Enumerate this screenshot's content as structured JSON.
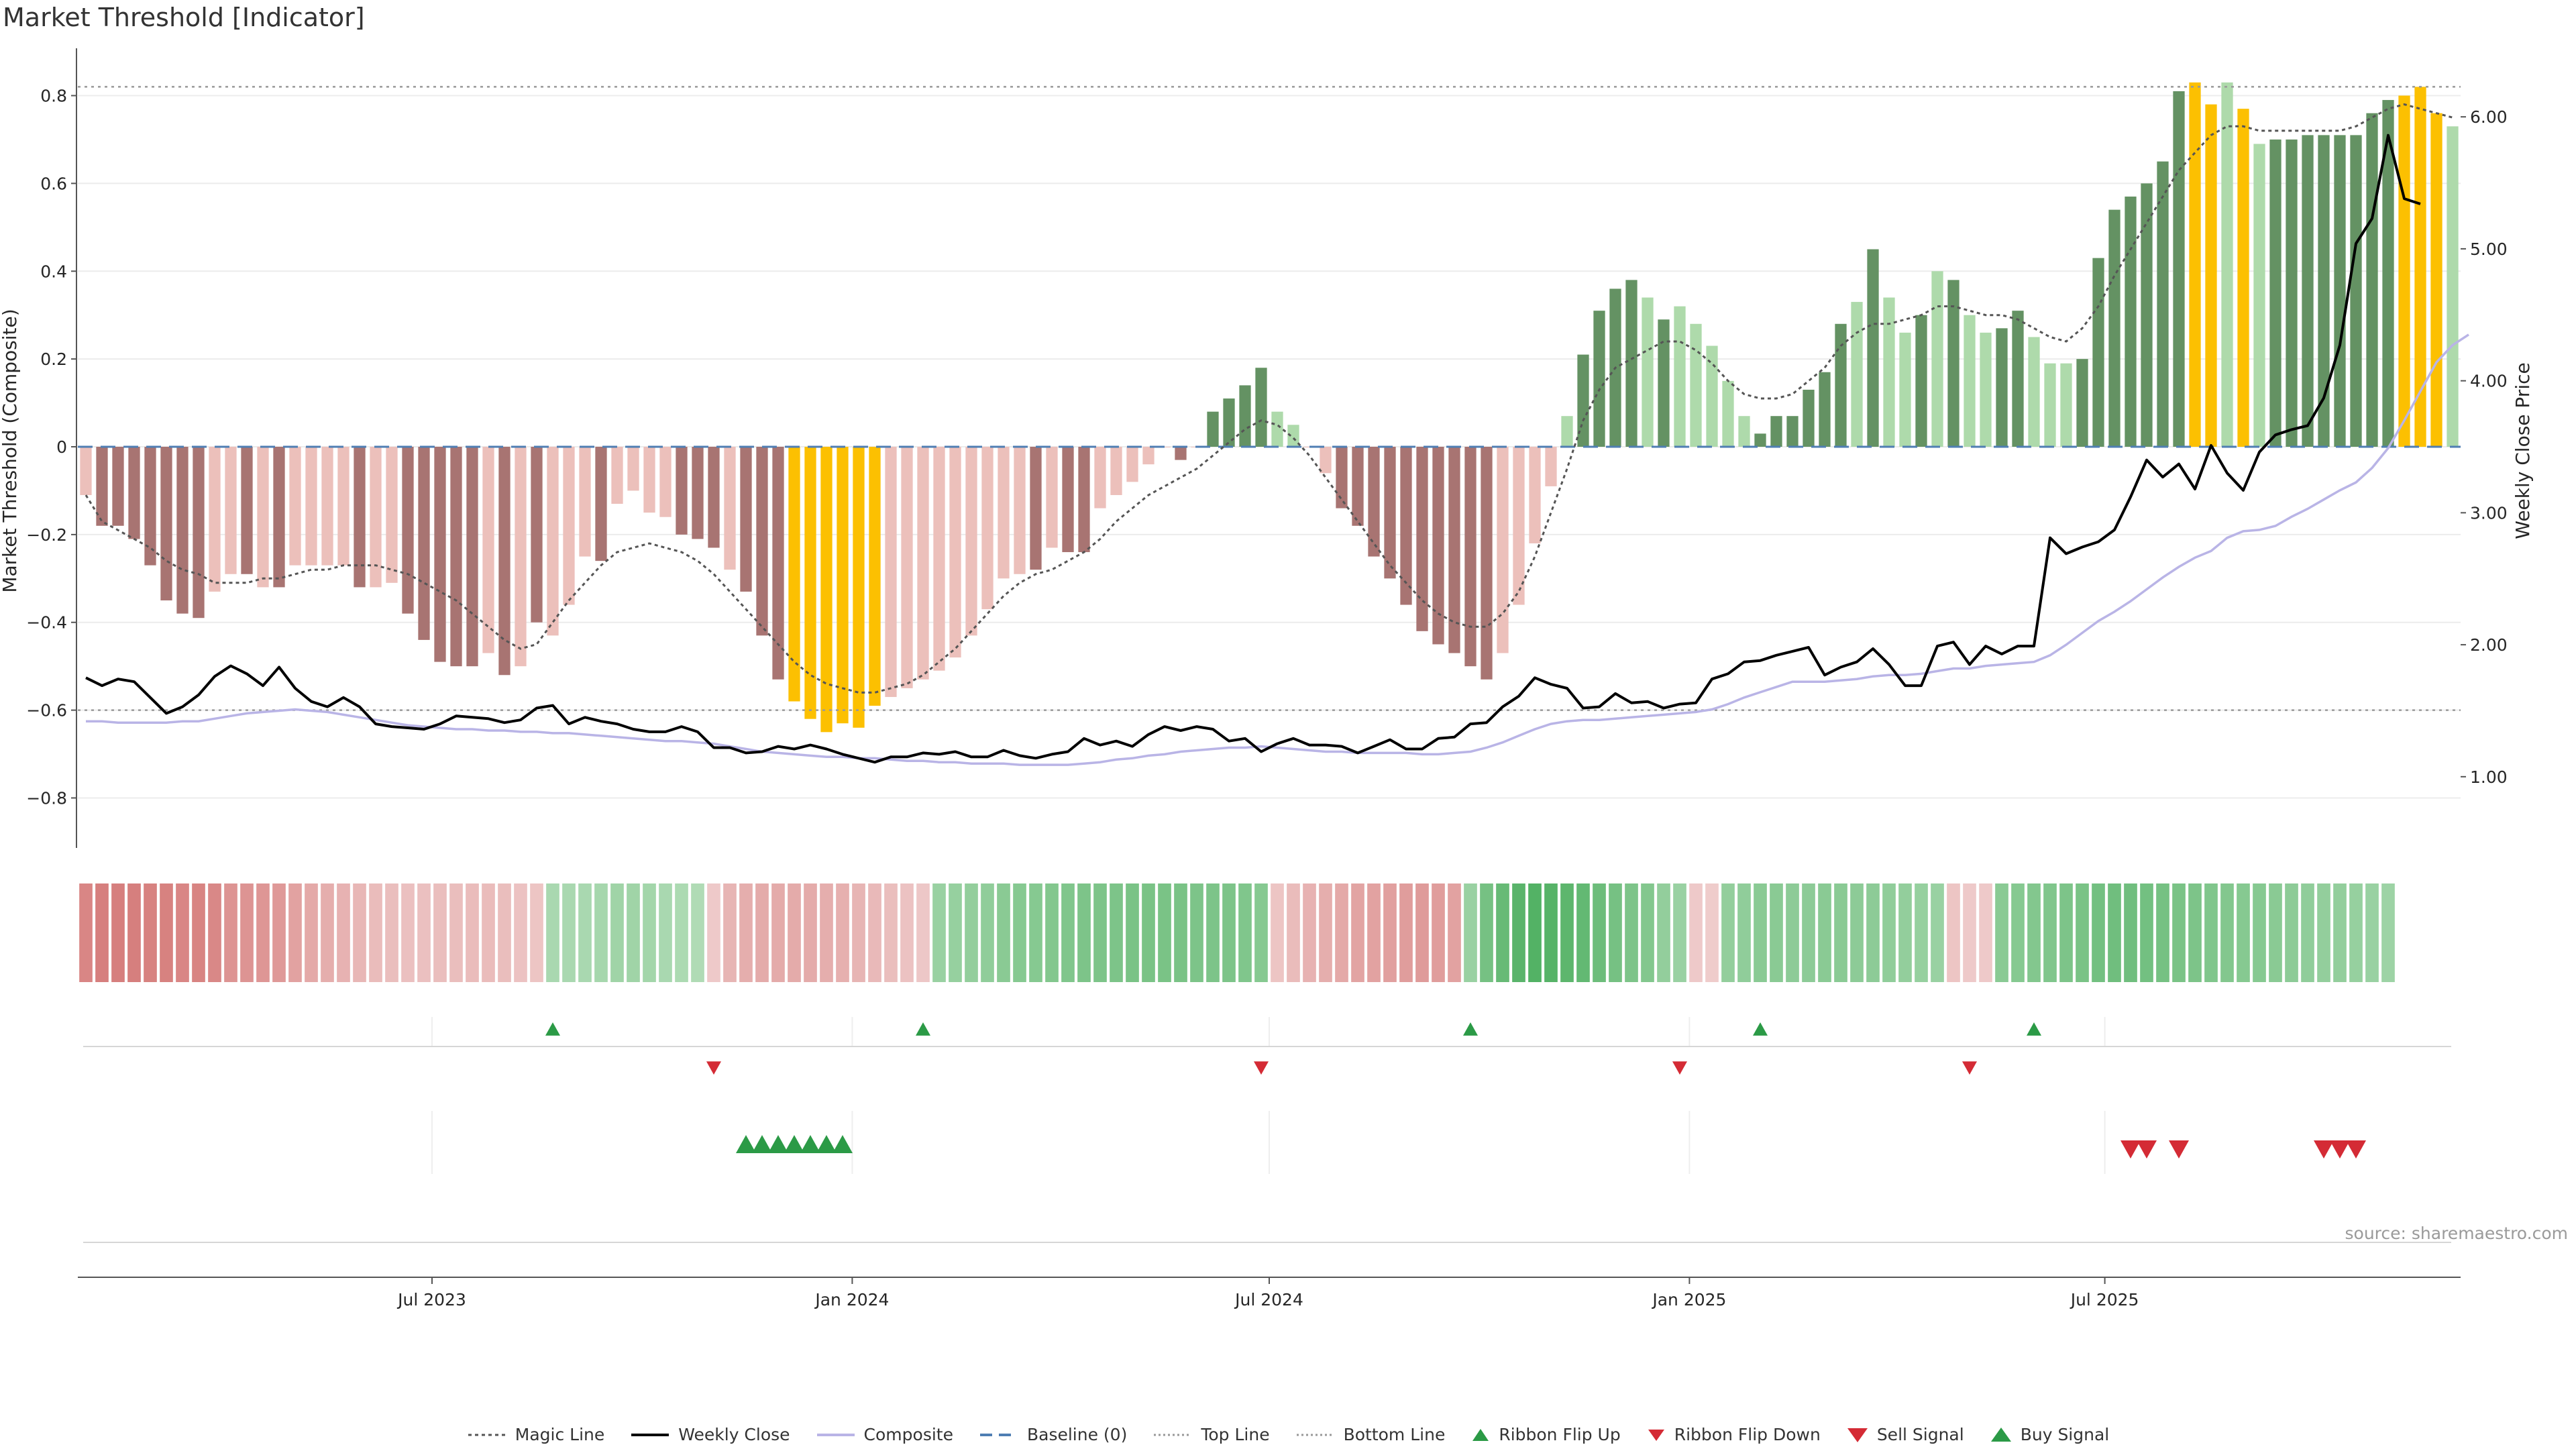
{
  "title": "Market Threshold [Indicator]",
  "source": "source: sharemaestro.com",
  "colors": {
    "neg_dark": "#a87472",
    "neg_light": "#ecc0bb",
    "pos_dark": "#649263",
    "pos_light": "#aedaab",
    "extreme": "#fcc001",
    "magic": "#555555",
    "weekly": "#000000",
    "composite": "#b9b4e6",
    "baseline": "#4f7eb3",
    "thresh": "#999999",
    "up": "#2b9a46",
    "down": "#d42b35"
  },
  "chart_data": {
    "type": "bar",
    "title": "Market Threshold [Indicator]",
    "ylabel": "Market Threshold (Composite)",
    "y2label": "Weekly Close Price",
    "ylim": [
      -0.92,
      0.92
    ],
    "y2lim": [
      0.44,
      6.56
    ],
    "yticks": [
      "0.8",
      "0.6",
      "0.4",
      "0.2",
      "0",
      "−0.2",
      "−0.4",
      "−0.6",
      "−0.8"
    ],
    "y2ticks": [
      "6.00",
      "5.00",
      "4.00",
      "3.00",
      "2.00",
      "1.00"
    ],
    "xticks": [
      {
        "label": "Jul 2023",
        "week": 21.5
      },
      {
        "label": "Jan 2024",
        "week": 47.6
      },
      {
        "label": "Jul 2024",
        "week": 73.5
      },
      {
        "label": "Jan 2025",
        "week": 99.6
      },
      {
        "label": "Jul 2025",
        "week": 125.4
      }
    ],
    "top_line": 0.82,
    "bottom_line": -0.6,
    "bar_values": [
      -0.11,
      -0.18,
      -0.18,
      -0.21,
      -0.27,
      -0.35,
      -0.38,
      -0.39,
      -0.33,
      -0.29,
      -0.29,
      -0.32,
      -0.32,
      -0.27,
      -0.27,
      -0.27,
      -0.27,
      -0.32,
      -0.32,
      -0.31,
      -0.38,
      -0.44,
      -0.49,
      -0.5,
      -0.5,
      -0.47,
      -0.52,
      -0.5,
      -0.4,
      -0.43,
      -0.36,
      -0.25,
      -0.26,
      -0.13,
      -0.1,
      -0.15,
      -0.16,
      -0.2,
      -0.21,
      -0.23,
      -0.28,
      -0.33,
      -0.43,
      -0.53,
      -0.58,
      -0.62,
      -0.65,
      -0.63,
      -0.64,
      -0.59,
      -0.57,
      -0.55,
      -0.53,
      -0.51,
      -0.48,
      -0.43,
      -0.37,
      -0.3,
      -0.29,
      -0.28,
      -0.23,
      -0.24,
      -0.24,
      -0.14,
      -0.11,
      -0.08,
      -0.04,
      0.0,
      -0.03,
      0.0,
      0.08,
      0.11,
      0.14,
      0.18,
      0.08,
      0.05,
      0.0,
      -0.06,
      -0.14,
      -0.18,
      -0.25,
      -0.3,
      -0.36,
      -0.42,
      -0.45,
      -0.47,
      -0.5,
      -0.53,
      -0.47,
      -0.36,
      -0.22,
      -0.09,
      0.07,
      0.21,
      0.31,
      0.36,
      0.38,
      0.34,
      0.29,
      0.32,
      0.28,
      0.23,
      0.15,
      0.07,
      0.03,
      0.07,
      0.07,
      0.13,
      0.17,
      0.28,
      0.33,
      0.45,
      0.34,
      0.26,
      0.3,
      0.4,
      0.38,
      0.3,
      0.26,
      0.27,
      0.31,
      0.25,
      0.19,
      0.19,
      0.2,
      0.43,
      0.54,
      0.57,
      0.6,
      0.65,
      0.81,
      0.83,
      0.78,
      0.83,
      0.77,
      0.69,
      0.7,
      0.7,
      0.71,
      0.71,
      0.71,
      0.71,
      0.76,
      0.79,
      0.8,
      0.82,
      0.76,
      0.73
    ],
    "bar_colors": [
      "L",
      "D",
      "D",
      "D",
      "D",
      "D",
      "D",
      "D",
      "L",
      "L",
      "D",
      "L",
      "D",
      "L",
      "L",
      "L",
      "L",
      "D",
      "L",
      "L",
      "D",
      "D",
      "D",
      "D",
      "D",
      "L",
      "D",
      "L",
      "D",
      "L",
      "L",
      "L",
      "D",
      "L",
      "L",
      "L",
      "L",
      "D",
      "D",
      "D",
      "L",
      "D",
      "D",
      "D",
      "Y",
      "Y",
      "Y",
      "Y",
      "Y",
      "Y",
      "L",
      "L",
      "L",
      "L",
      "L",
      "L",
      "L",
      "L",
      "L",
      "D",
      "L",
      "D",
      "D",
      "L",
      "L",
      "L",
      "L",
      "L",
      "D",
      "L",
      "G",
      "G",
      "G",
      "G",
      "P",
      "P",
      "L",
      "L",
      "D",
      "D",
      "D",
      "D",
      "D",
      "D",
      "D",
      "D",
      "D",
      "D",
      "L",
      "L",
      "L",
      "L",
      "P",
      "G",
      "G",
      "G",
      "G",
      "P",
      "G",
      "P",
      "P",
      "P",
      "P",
      "P",
      "G",
      "G",
      "G",
      "G",
      "G",
      "G",
      "P",
      "G",
      "P",
      "P",
      "G",
      "P",
      "G",
      "P",
      "P",
      "G",
      "G",
      "P",
      "P",
      "P",
      "G",
      "G",
      "G",
      "G",
      "G",
      "G",
      "G",
      "Y",
      "Y",
      "P",
      "Y",
      "P",
      "G",
      "G",
      "G",
      "G",
      "G",
      "G",
      "G",
      "G",
      "Y",
      "Y",
      "Y",
      "P",
      "P"
    ],
    "magic_line": [
      -0.11,
      -0.17,
      -0.19,
      -0.21,
      -0.23,
      -0.26,
      -0.28,
      -0.29,
      -0.31,
      -0.31,
      -0.31,
      -0.3,
      -0.3,
      -0.29,
      -0.28,
      -0.28,
      -0.27,
      -0.27,
      -0.27,
      -0.28,
      -0.29,
      -0.31,
      -0.33,
      -0.35,
      -0.38,
      -0.41,
      -0.44,
      -0.46,
      -0.45,
      -0.4,
      -0.35,
      -0.31,
      -0.27,
      -0.24,
      -0.23,
      -0.22,
      -0.23,
      -0.24,
      -0.26,
      -0.29,
      -0.33,
      -0.37,
      -0.41,
      -0.45,
      -0.49,
      -0.52,
      -0.54,
      -0.55,
      -0.56,
      -0.56,
      -0.55,
      -0.54,
      -0.52,
      -0.49,
      -0.46,
      -0.42,
      -0.38,
      -0.34,
      -0.31,
      -0.29,
      -0.28,
      -0.26,
      -0.24,
      -0.21,
      -0.17,
      -0.14,
      -0.11,
      -0.09,
      -0.07,
      -0.05,
      -0.02,
      0.01,
      0.04,
      0.06,
      0.05,
      0.02,
      -0.02,
      -0.07,
      -0.12,
      -0.17,
      -0.22,
      -0.27,
      -0.31,
      -0.35,
      -0.38,
      -0.4,
      -0.41,
      -0.41,
      -0.38,
      -0.33,
      -0.25,
      -0.15,
      -0.05,
      0.06,
      0.13,
      0.18,
      0.2,
      0.22,
      0.24,
      0.24,
      0.22,
      0.19,
      0.15,
      0.12,
      0.11,
      0.11,
      0.12,
      0.15,
      0.18,
      0.23,
      0.26,
      0.28,
      0.28,
      0.29,
      0.3,
      0.32,
      0.32,
      0.31,
      0.3,
      0.3,
      0.29,
      0.27,
      0.25,
      0.24,
      0.27,
      0.32,
      0.39,
      0.45,
      0.51,
      0.57,
      0.63,
      0.67,
      0.71,
      0.73,
      0.73,
      0.72,
      0.72,
      0.72,
      0.72,
      0.72,
      0.72,
      0.73,
      0.75,
      0.77,
      0.78,
      0.77,
      0.76,
      0.75
    ],
    "weekly_close": [
      1.75,
      1.69,
      1.74,
      1.72,
      1.6,
      1.48,
      1.53,
      1.62,
      1.76,
      1.84,
      1.78,
      1.69,
      1.83,
      1.67,
      1.57,
      1.53,
      1.6,
      1.53,
      1.4,
      1.38,
      1.37,
      1.36,
      1.4,
      1.46,
      1.45,
      1.44,
      1.41,
      1.43,
      1.52,
      1.54,
      1.4,
      1.45,
      1.42,
      1.4,
      1.36,
      1.34,
      1.34,
      1.38,
      1.34,
      1.22,
      1.22,
      1.18,
      1.19,
      1.23,
      1.21,
      1.24,
      1.21,
      1.17,
      1.14,
      1.11,
      1.15,
      1.15,
      1.18,
      1.17,
      1.19,
      1.15,
      1.15,
      1.2,
      1.16,
      1.14,
      1.17,
      1.19,
      1.29,
      1.24,
      1.27,
      1.23,
      1.32,
      1.38,
      1.35,
      1.38,
      1.36,
      1.27,
      1.29,
      1.19,
      1.25,
      1.29,
      1.24,
      1.24,
      1.23,
      1.18,
      1.23,
      1.28,
      1.21,
      1.21,
      1.29,
      1.3,
      1.4,
      1.41,
      1.53,
      1.61,
      1.75,
      1.7,
      1.67,
      1.52,
      1.53,
      1.63,
      1.56,
      1.57,
      1.52,
      1.55,
      1.56,
      1.74,
      1.78,
      1.87,
      1.88,
      1.92,
      1.95,
      1.98,
      1.77,
      1.83,
      1.87,
      1.97,
      1.85,
      1.69,
      1.69,
      1.99,
      2.02,
      1.85,
      1.99,
      1.93,
      1.99,
      1.99,
      2.81,
      2.69,
      2.74,
      2.78,
      2.87,
      3.12,
      3.4,
      3.27,
      3.37,
      3.18,
      3.51,
      3.3,
      3.17,
      3.46,
      3.59,
      3.63,
      3.66,
      3.87,
      4.27,
      5.04,
      5.23,
      5.86,
      5.38,
      5.34
    ],
    "composite": [
      1.42,
      1.42,
      1.41,
      1.41,
      1.41,
      1.41,
      1.42,
      1.42,
      1.44,
      1.46,
      1.48,
      1.49,
      1.5,
      1.51,
      1.5,
      1.49,
      1.47,
      1.45,
      1.43,
      1.41,
      1.39,
      1.38,
      1.37,
      1.36,
      1.36,
      1.35,
      1.35,
      1.34,
      1.34,
      1.33,
      1.33,
      1.32,
      1.31,
      1.3,
      1.29,
      1.28,
      1.27,
      1.27,
      1.26,
      1.25,
      1.23,
      1.21,
      1.19,
      1.18,
      1.17,
      1.16,
      1.15,
      1.15,
      1.14,
      1.14,
      1.13,
      1.12,
      1.12,
      1.11,
      1.11,
      1.1,
      1.1,
      1.1,
      1.09,
      1.09,
      1.09,
      1.09,
      1.1,
      1.11,
      1.13,
      1.14,
      1.16,
      1.17,
      1.19,
      1.2,
      1.21,
      1.22,
      1.22,
      1.23,
      1.22,
      1.21,
      1.2,
      1.19,
      1.19,
      1.18,
      1.18,
      1.18,
      1.18,
      1.17,
      1.17,
      1.18,
      1.19,
      1.22,
      1.26,
      1.31,
      1.36,
      1.4,
      1.42,
      1.43,
      1.43,
      1.44,
      1.45,
      1.46,
      1.47,
      1.48,
      1.49,
      1.51,
      1.55,
      1.6,
      1.64,
      1.68,
      1.72,
      1.72,
      1.72,
      1.73,
      1.74,
      1.76,
      1.77,
      1.77,
      1.78,
      1.8,
      1.82,
      1.82,
      1.84,
      1.85,
      1.86,
      1.87,
      1.92,
      2.0,
      2.09,
      2.18,
      2.25,
      2.33,
      2.42,
      2.51,
      2.59,
      2.66,
      2.71,
      2.81,
      2.86,
      2.87,
      2.9,
      2.97,
      3.03,
      3.1,
      3.17,
      3.23,
      3.34,
      3.49,
      3.7,
      3.92,
      4.14,
      4.27,
      4.35
    ],
    "ribbon": [
      -0.74,
      -0.8,
      -0.8,
      -0.8,
      -0.78,
      -0.78,
      -0.74,
      -0.76,
      -0.72,
      -0.62,
      -0.62,
      -0.6,
      -0.58,
      -0.5,
      -0.44,
      -0.4,
      -0.36,
      -0.32,
      -0.28,
      -0.26,
      -0.24,
      -0.24,
      -0.26,
      -0.26,
      -0.28,
      -0.28,
      -0.26,
      -0.22,
      -0.2,
      0.3,
      0.3,
      0.3,
      0.32,
      0.36,
      0.36,
      0.34,
      0.3,
      0.28,
      0.26,
      -0.16,
      -0.34,
      -0.4,
      -0.42,
      -0.42,
      -0.42,
      -0.42,
      -0.4,
      -0.38,
      -0.34,
      -0.3,
      -0.26,
      -0.22,
      -0.18,
      0.4,
      0.42,
      0.44,
      0.46,
      0.5,
      0.52,
      0.52,
      0.54,
      0.56,
      0.58,
      0.58,
      0.58,
      0.6,
      0.6,
      0.6,
      0.6,
      0.58,
      0.58,
      0.58,
      0.56,
      0.52,
      -0.2,
      -0.28,
      -0.36,
      -0.4,
      -0.44,
      -0.48,
      -0.5,
      -0.52,
      -0.54,
      -0.56,
      -0.54,
      -0.5,
      0.4,
      0.62,
      0.72,
      0.8,
      0.84,
      0.82,
      0.78,
      0.74,
      0.68,
      0.62,
      0.58,
      0.54,
      0.44,
      0.4,
      -0.16,
      -0.14,
      0.44,
      0.46,
      0.5,
      0.5,
      0.48,
      0.48,
      0.5,
      0.5,
      0.48,
      0.48,
      0.46,
      0.44,
      0.42,
      0.4,
      -0.2,
      -0.16,
      -0.16,
      0.5,
      0.52,
      0.54,
      0.56,
      0.58,
      0.6,
      0.64,
      0.66,
      0.66,
      0.64,
      0.62,
      0.6,
      0.58,
      0.56,
      0.54,
      0.52,
      0.52,
      0.5,
      0.48,
      0.46,
      0.44,
      0.44,
      0.42,
      0.4,
      0.38
    ],
    "ribbon_flip_up": [
      29,
      52,
      86,
      104,
      121
    ],
    "ribbon_flip_down": [
      39,
      73,
      99,
      117
    ],
    "buy_signal": [
      41,
      42,
      43,
      44,
      45,
      46,
      47
    ],
    "sell_signal": [
      127,
      128,
      130,
      139,
      140,
      141
    ],
    "legend": [
      "Magic Line",
      "Weekly Close",
      "Composite",
      "Baseline (0)",
      "Top Line",
      "Bottom Line",
      "Ribbon Flip Up",
      "Ribbon Flip Down",
      "Sell Signal",
      "Buy Signal"
    ]
  }
}
